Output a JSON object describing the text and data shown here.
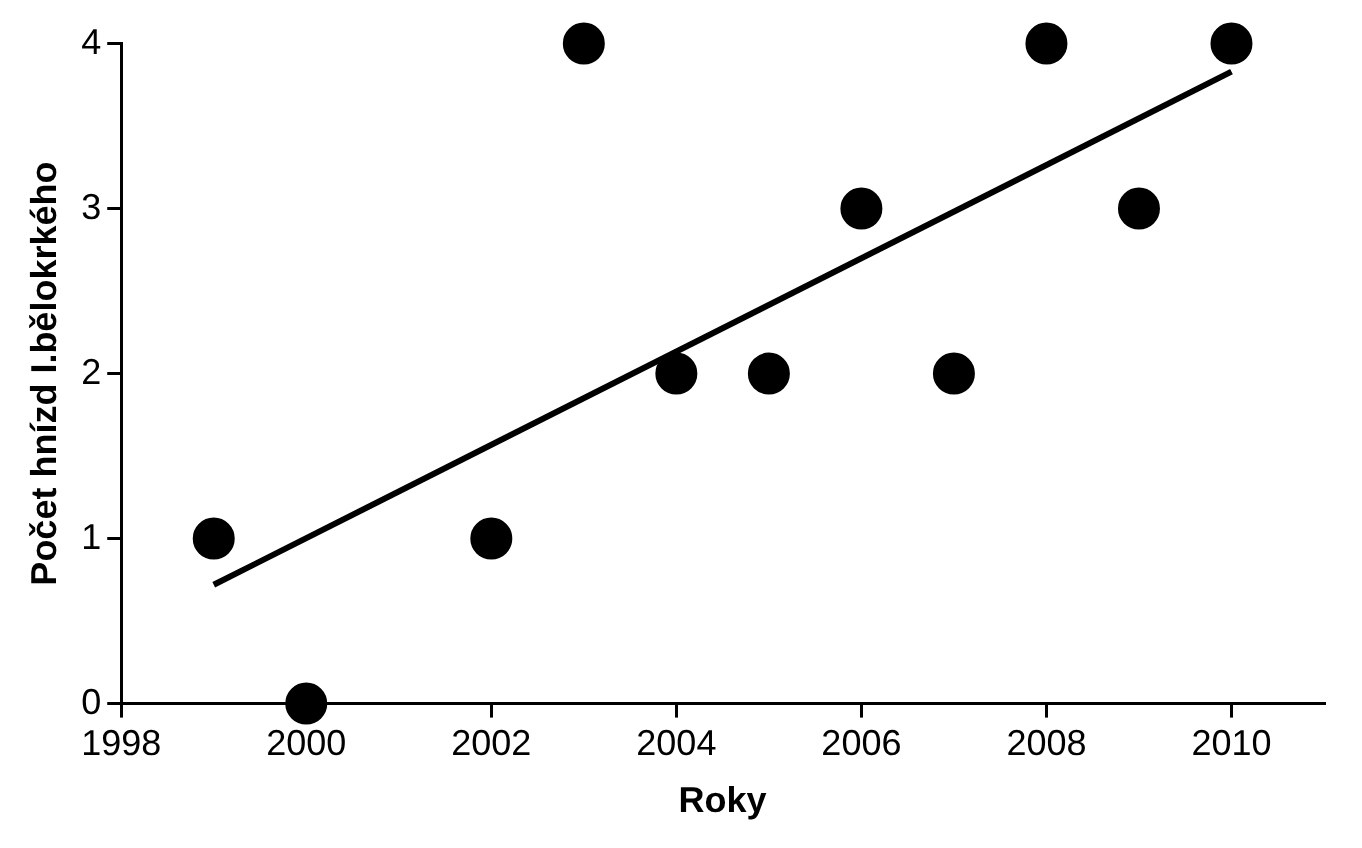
{
  "chart_data": {
    "type": "scatter",
    "xlabel": "Roky",
    "ylabel": "Počet hnízd I.bělokrkého",
    "xlim": [
      1998,
      2011
    ],
    "xticks": [
      1998,
      2000,
      2002,
      2004,
      2006,
      2008,
      2010
    ],
    "ylim": [
      0,
      4
    ],
    "yticks": [
      0,
      1,
      2,
      3,
      4
    ],
    "grid": false,
    "legend": false,
    "series": [
      {
        "marker": "circle",
        "color": "#000000",
        "x": [
          1999,
          2000,
          2002,
          2003,
          2004,
          2005,
          2006,
          2007,
          2008,
          2009,
          2010
        ],
        "values": [
          1,
          0,
          1,
          4,
          2,
          2,
          3,
          2,
          4,
          3,
          4
        ]
      },
      {
        "type": "line",
        "marker": "none",
        "color": "#000000",
        "x": [
          1999,
          2010
        ],
        "values": [
          0.72,
          3.83
        ]
      }
    ]
  }
}
